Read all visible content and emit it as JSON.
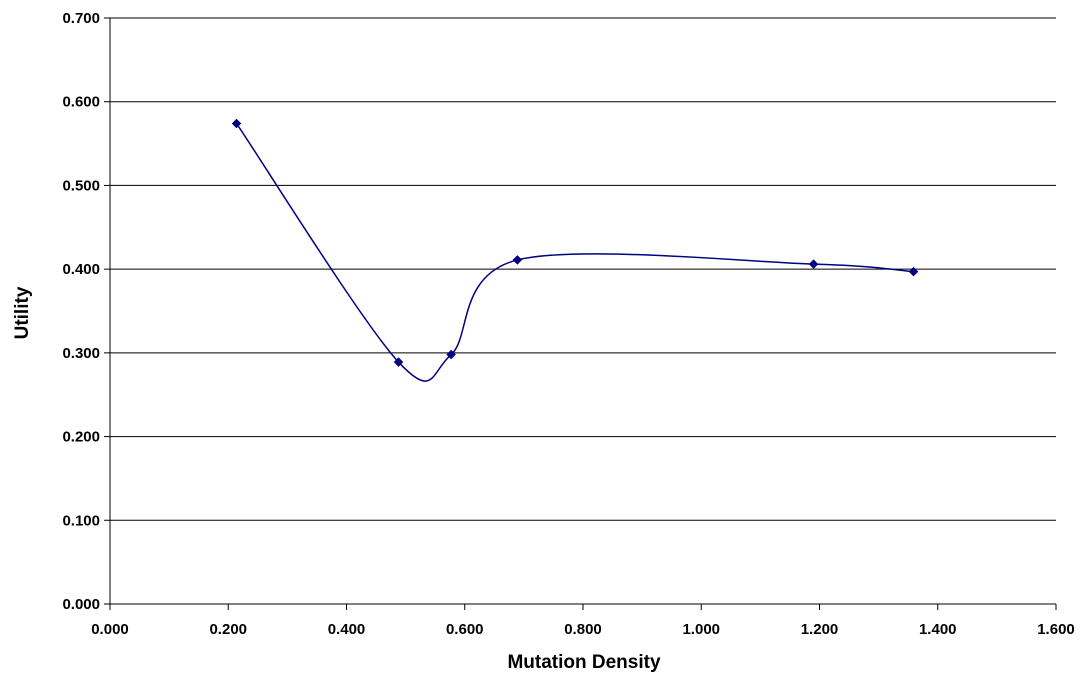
{
  "chart_data": {
    "type": "scatter",
    "title": "",
    "xlabel": "Mutation Density",
    "ylabel": "Utility",
    "xlim": [
      0,
      1.6
    ],
    "ylim": [
      0,
      0.7
    ],
    "x_ticks": [
      "0.000",
      "0.200",
      "0.400",
      "0.600",
      "0.800",
      "1.000",
      "1.200",
      "1.400",
      "1.600"
    ],
    "y_ticks": [
      "0.000",
      "0.100",
      "0.200",
      "0.300",
      "0.400",
      "0.500",
      "0.600",
      "0.700"
    ],
    "grid": "horizontal",
    "legend": "none",
    "line": "smoothed",
    "marker": "diamond",
    "series": [
      {
        "x": [
          0.214,
          0.488,
          0.577,
          0.689,
          1.19,
          1.359
        ],
        "y": [
          0.574,
          0.289,
          0.298,
          0.411,
          0.406,
          0.397
        ],
        "color": "#000080"
      }
    ]
  }
}
